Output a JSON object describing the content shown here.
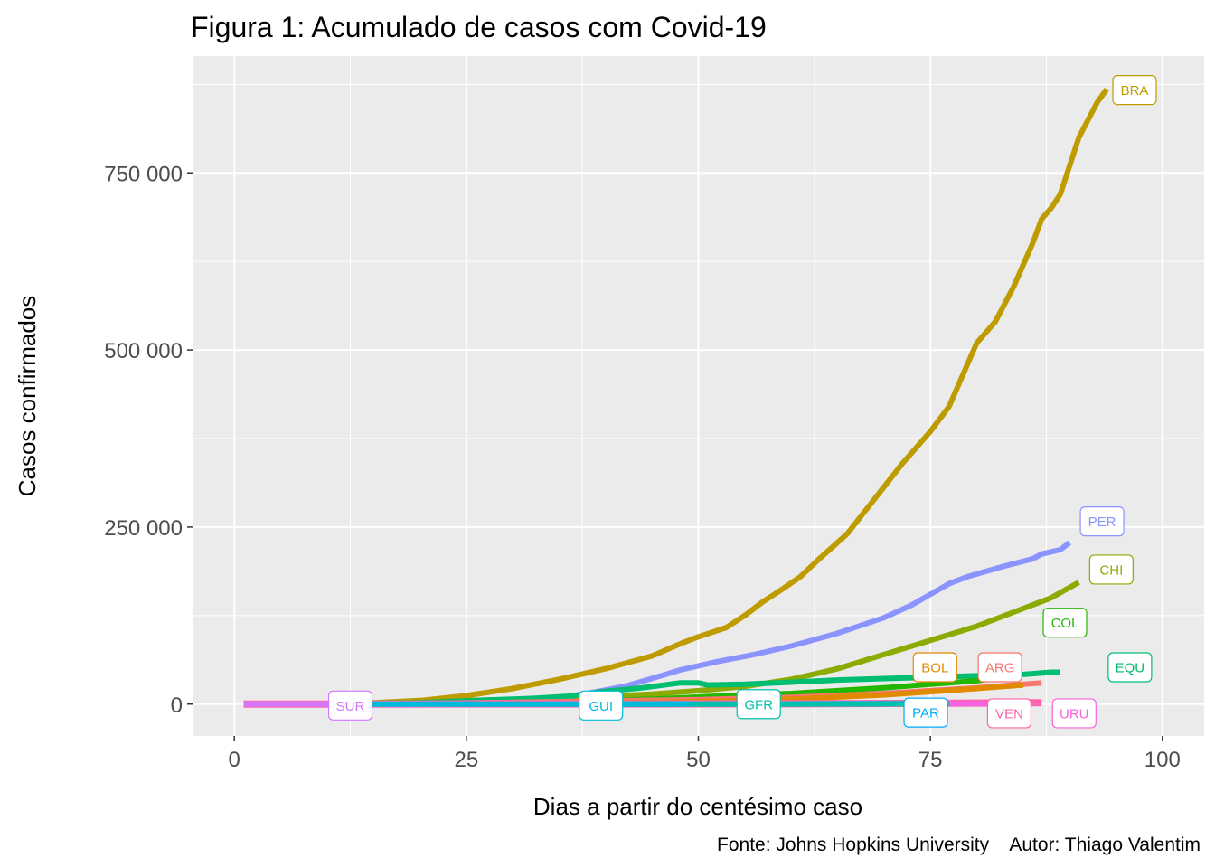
{
  "chart_data": {
    "type": "line",
    "title": "Figura 1: Acumulado de casos com Covid-19",
    "xlabel": "Dias a partir do centésimo caso",
    "ylabel": "Casos confirmados",
    "caption": "Fonte: Johns Hopkins University    Autor: Thiago Valentim",
    "xlim": [
      -4.5,
      104.5
    ],
    "ylim": [
      -45000,
      915000
    ],
    "x_ticks": [
      0,
      25,
      50,
      75,
      100
    ],
    "x_tick_labels": [
      "0",
      "25",
      "50",
      "75",
      "100"
    ],
    "y_ticks": [
      0,
      250000,
      500000,
      750000
    ],
    "y_tick_labels": [
      "0",
      "250 000",
      "500 000",
      "750 000"
    ],
    "grid": true,
    "series": [
      {
        "name": "ARG",
        "color": "#F8766D",
        "width": 6,
        "label_pos": [
          82.5,
          52000
        ],
        "points": [
          [
            12,
            0
          ],
          [
            20,
            1000
          ],
          [
            30,
            2500
          ],
          [
            40,
            4500
          ],
          [
            50,
            6500
          ],
          [
            60,
            9500
          ],
          [
            70,
            15000
          ],
          [
            80,
            23000
          ],
          [
            87,
            30000
          ]
        ]
      },
      {
        "name": "BOL",
        "color": "#E18A00",
        "width": 6,
        "label_pos": [
          75.5,
          52000
        ],
        "points": [
          [
            10,
            0
          ],
          [
            20,
            100
          ],
          [
            30,
            500
          ],
          [
            40,
            1800
          ],
          [
            50,
            3500
          ],
          [
            60,
            7000
          ],
          [
            70,
            13000
          ],
          [
            80,
            22000
          ],
          [
            85,
            27000
          ]
        ]
      },
      {
        "name": "BRA",
        "color": "#BE9C00",
        "width": 6,
        "label_pos": [
          97,
          867000
        ],
        "points": [
          [
            12,
            0
          ],
          [
            20,
            5000
          ],
          [
            25,
            12000
          ],
          [
            30,
            22000
          ],
          [
            35,
            35000
          ],
          [
            40,
            50000
          ],
          [
            45,
            68000
          ],
          [
            48,
            85000
          ],
          [
            50,
            95000
          ],
          [
            53,
            108000
          ],
          [
            55,
            125000
          ],
          [
            57,
            145000
          ],
          [
            59,
            162000
          ],
          [
            61,
            180000
          ],
          [
            63,
            205000
          ],
          [
            66,
            240000
          ],
          [
            69,
            290000
          ],
          [
            72,
            340000
          ],
          [
            75,
            385000
          ],
          [
            77,
            420000
          ],
          [
            79,
            480000
          ],
          [
            80,
            510000
          ],
          [
            82,
            540000
          ],
          [
            84,
            590000
          ],
          [
            86,
            650000
          ],
          [
            87,
            685000
          ],
          [
            88,
            700000
          ],
          [
            89,
            720000
          ],
          [
            91,
            800000
          ],
          [
            93,
            850000
          ],
          [
            94,
            868000
          ]
        ]
      },
      {
        "name": "CHI",
        "color": "#8CAB00",
        "width": 6,
        "label_pos": [
          94.5,
          190000
        ],
        "points": [
          [
            12,
            0
          ],
          [
            25,
            5000
          ],
          [
            35,
            8000
          ],
          [
            45,
            14000
          ],
          [
            50,
            19000
          ],
          [
            55,
            25000
          ],
          [
            60,
            35000
          ],
          [
            65,
            50000
          ],
          [
            70,
            70000
          ],
          [
            75,
            90000
          ],
          [
            80,
            110000
          ],
          [
            85,
            135000
          ],
          [
            88,
            150000
          ],
          [
            91,
            172000
          ]
        ]
      },
      {
        "name": "COL",
        "color": "#24B700",
        "width": 6,
        "label_pos": [
          89.5,
          115000
        ],
        "points": [
          [
            14,
            0
          ],
          [
            25,
            1000
          ],
          [
            35,
            3000
          ],
          [
            45,
            7000
          ],
          [
            55,
            13000
          ],
          [
            60,
            15000
          ],
          [
            65,
            19000
          ],
          [
            70,
            23000
          ],
          [
            75,
            28000
          ],
          [
            80,
            33000
          ],
          [
            83,
            38000
          ]
        ]
      },
      {
        "name": "EQU",
        "color": "#00BE70",
        "width": 6,
        "label_pos": [
          96.5,
          52000
        ],
        "points": [
          [
            12,
            0
          ],
          [
            20,
            2000
          ],
          [
            28,
            6000
          ],
          [
            32,
            8000
          ],
          [
            36,
            11000
          ],
          [
            40,
            18000
          ],
          [
            44,
            23000
          ],
          [
            48,
            30000
          ],
          [
            50,
            30000
          ],
          [
            51,
            27000
          ],
          [
            55,
            28000
          ],
          [
            60,
            31000
          ],
          [
            65,
            34000
          ],
          [
            70,
            36000
          ],
          [
            75,
            38000
          ],
          [
            80,
            40000
          ],
          [
            85,
            42000
          ],
          [
            88,
            45000
          ],
          [
            89,
            45000
          ]
        ]
      },
      {
        "name": "GFR",
        "color": "#00C1AB",
        "width": 6,
        "label_pos": [
          56.5,
          0
        ],
        "points": [
          [
            42,
            0
          ],
          [
            60,
            100
          ],
          [
            70,
            300
          ],
          [
            77,
            600
          ]
        ]
      },
      {
        "name": "GUI",
        "color": "#00BBDA",
        "width": 6,
        "label_pos": [
          39.5,
          -2000
        ],
        "points": [
          [
            10,
            0
          ],
          [
            30,
            10
          ],
          [
            40,
            100
          ],
          [
            49,
            150
          ]
        ]
      },
      {
        "name": "PAR",
        "color": "#00ACFC",
        "width": 6,
        "label_pos": [
          74.5,
          -12000
        ],
        "points": [
          [
            14,
            0
          ],
          [
            40,
            300
          ],
          [
            60,
            700
          ],
          [
            76,
            1200
          ]
        ]
      },
      {
        "name": "PER",
        "color": "#8B93FF",
        "width": 6,
        "label_pos": [
          93.5,
          258000
        ],
        "points": [
          [
            13,
            0
          ],
          [
            25,
            1000
          ],
          [
            33,
            5000
          ],
          [
            38,
            15000
          ],
          [
            42,
            25000
          ],
          [
            46,
            40000
          ],
          [
            48,
            48000
          ],
          [
            52,
            60000
          ],
          [
            56,
            70000
          ],
          [
            60,
            82000
          ],
          [
            65,
            100000
          ],
          [
            70,
            122000
          ],
          [
            73,
            140000
          ],
          [
            75,
            155000
          ],
          [
            77,
            170000
          ],
          [
            79,
            180000
          ],
          [
            83,
            195000
          ],
          [
            86,
            205000
          ],
          [
            87,
            212000
          ],
          [
            88,
            215000
          ],
          [
            89,
            218000
          ],
          [
            90,
            228000
          ]
        ]
      },
      {
        "name": "SUR",
        "color": "#D575FE",
        "width": 6,
        "label_pos": [
          12.5,
          -2000
        ],
        "points": [
          [
            1,
            0
          ],
          [
            14,
            0
          ]
        ]
      },
      {
        "name": "URU",
        "color": "#F962DD",
        "width": 6,
        "label_pos": [
          90.5,
          -13000
        ],
        "points": [
          [
            11,
            0
          ],
          [
            40,
            300
          ],
          [
            60,
            600
          ],
          [
            86,
            850
          ]
        ]
      },
      {
        "name": "VEN",
        "color": "#FF65AC",
        "width": 8,
        "label_pos": [
          83.5,
          -13000
        ],
        "points": [
          [
            1,
            0
          ],
          [
            40,
            200
          ],
          [
            60,
            500
          ],
          [
            80,
            1500
          ],
          [
            87,
            2000
          ]
        ]
      }
    ]
  }
}
